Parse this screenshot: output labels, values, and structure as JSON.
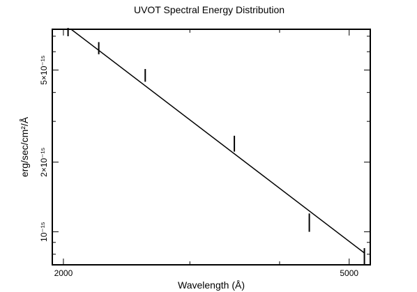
{
  "chart_data": {
    "type": "scatter",
    "title": "UVOT Spectral Energy Distribution",
    "xlabel": "Wavelength (Å)",
    "ylabel": "erg/sec/cm²/Å",
    "x_scale": "log",
    "y_scale": "log",
    "xlim": [
      1930,
      5350
    ],
    "ylim": [
      7.2e-16,
      7.5e-15
    ],
    "x_ticks": [
      {
        "value": 2000,
        "label": "2000"
      },
      {
        "value": 5000,
        "label": "5000"
      }
    ],
    "y_ticks": [
      {
        "value": 1e-15,
        "label": "10⁻¹⁵"
      },
      {
        "value": 2e-15,
        "label": "2×10⁻¹⁵"
      },
      {
        "value": 5e-15,
        "label": "5×10⁻¹⁵"
      }
    ],
    "data_points": [
      {
        "x": 2030,
        "y": 7.25e-15,
        "y_low": 7e-15,
        "y_high": 7.6e-15
      },
      {
        "x": 2240,
        "y": 6.2e-15,
        "y_low": 5.85e-15,
        "y_high": 6.6e-15
      },
      {
        "x": 2600,
        "y": 4.75e-15,
        "y_low": 4.45e-15,
        "y_high": 5.05e-15
      },
      {
        "x": 3460,
        "y": 2.4e-15,
        "y_low": 2.22e-15,
        "y_high": 2.6e-15
      },
      {
        "x": 4400,
        "y": 1.1e-15,
        "y_low": 1e-15,
        "y_high": 1.2e-15
      },
      {
        "x": 5250,
        "y": 7.8e-16,
        "y_low": 7.2e-16,
        "y_high": 8.5e-16
      }
    ],
    "fit_line": {
      "x": [
        2050,
        5250
      ],
      "y": [
        7.5e-15,
        8.1e-16
      ]
    },
    "grid": false,
    "legend": false
  }
}
